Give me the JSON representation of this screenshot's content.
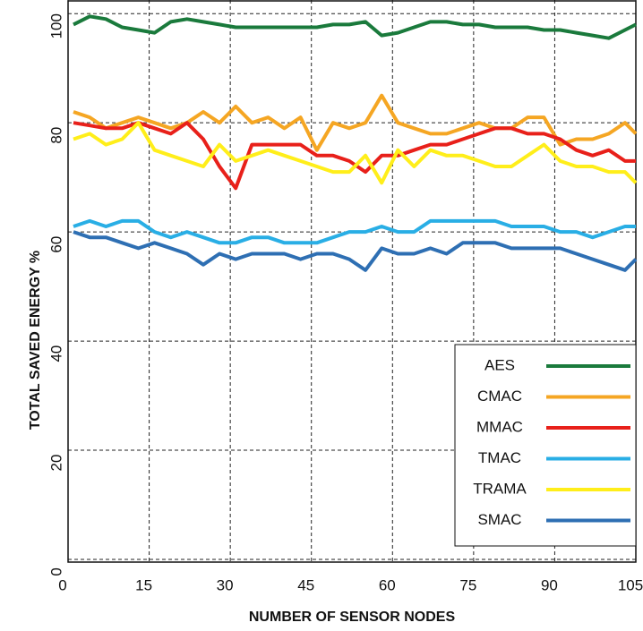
{
  "chart_data": {
    "type": "line",
    "xlabel": "NUMBER OF SENSOR NODES",
    "ylabel": "TOTAL SAVED ENERGY %",
    "x": [
      1,
      4,
      7,
      10,
      13,
      16,
      19,
      22,
      25,
      28,
      31,
      34,
      37,
      40,
      43,
      46,
      49,
      52,
      55,
      58,
      61,
      64,
      67,
      70,
      73,
      76,
      79,
      82,
      85,
      88,
      91,
      94,
      97,
      100,
      103,
      105
    ],
    "series": [
      {
        "name": "AES",
        "color": "#1a7a3c",
        "values": [
          98,
          99.5,
          99,
          97.5,
          97,
          96.5,
          98.5,
          99,
          98.5,
          98,
          97.5,
          97.5,
          97.5,
          97.5,
          97.5,
          97.5,
          98,
          98,
          98.5,
          96,
          96.5,
          97.5,
          98.5,
          98.5,
          98,
          98,
          97.5,
          97.5,
          97.5,
          97,
          97,
          96.5,
          96,
          95.5,
          97,
          98
        ]
      },
      {
        "name": "CMAC",
        "color": "#f5a623",
        "values": [
          82,
          81,
          79,
          80,
          81,
          80,
          79,
          80,
          82,
          80,
          83,
          80,
          81,
          79,
          81,
          75,
          80,
          79,
          80,
          85,
          80,
          79,
          78,
          78,
          79,
          80,
          79,
          79,
          81,
          81,
          76,
          77,
          77,
          78,
          80,
          78
        ]
      },
      {
        "name": "MMAC",
        "color": "#e8201a",
        "values": [
          80,
          79.5,
          79,
          79,
          80,
          79,
          78,
          80,
          77,
          72,
          68,
          76,
          76,
          76,
          76,
          74,
          74,
          73,
          71,
          74,
          74,
          75,
          76,
          76,
          77,
          78,
          79,
          79,
          78,
          78,
          77,
          75,
          74,
          75,
          73,
          73
        ]
      },
      {
        "name": "TMAC",
        "color": "#29aee5",
        "values": [
          61,
          62,
          61,
          62,
          62,
          60,
          59,
          60,
          59,
          58,
          58,
          59,
          59,
          58,
          58,
          58,
          59,
          60,
          60,
          61,
          60,
          60,
          62,
          62,
          62,
          62,
          62,
          61,
          61,
          61,
          60,
          60,
          59,
          60,
          61,
          61
        ]
      },
      {
        "name": "TRAMA",
        "color": "#ffee1a",
        "values": [
          77,
          78,
          76,
          77,
          80,
          75,
          74,
          73,
          72,
          76,
          73,
          74,
          75,
          74,
          73,
          72,
          71,
          71,
          74,
          69,
          75,
          72,
          75,
          74,
          74,
          73,
          72,
          72,
          74,
          76,
          73,
          72,
          72,
          71,
          71,
          69
        ]
      },
      {
        "name": "SMAC",
        "color": "#2e6fb3",
        "values": [
          60,
          59,
          59,
          58,
          57,
          58,
          57,
          56,
          54,
          56,
          55,
          56,
          56,
          56,
          55,
          56,
          56,
          55,
          53,
          57,
          56,
          56,
          57,
          56,
          58,
          58,
          58,
          57,
          57,
          57,
          57,
          56,
          55,
          54,
          53,
          55
        ]
      }
    ],
    "xlim": [
      0,
      105
    ],
    "xticks": [
      0,
      15,
      30,
      45,
      60,
      75,
      90,
      105
    ],
    "ylim": [
      -0.5,
      102.5
    ],
    "yticks": [
      0,
      20,
      40,
      60,
      80,
      100
    ],
    "grid": true,
    "legend": "lower-right"
  }
}
